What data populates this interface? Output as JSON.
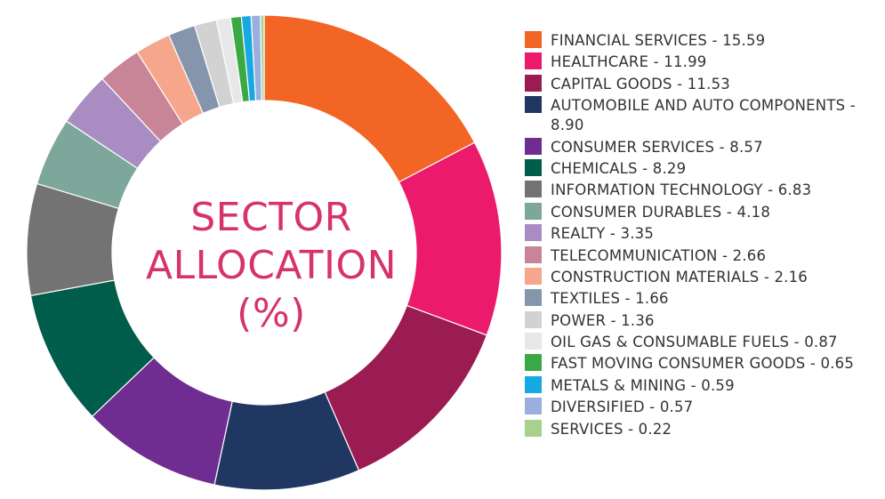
{
  "chart_data": {
    "type": "pie",
    "title_lines": [
      "SECTOR",
      "ALLOCATION",
      "(%)"
    ],
    "slices": [
      {
        "label": "FINANCIAL SERVICES - 15.59",
        "value": 15.59,
        "color": "#f26524"
      },
      {
        "label": "HEALTHCARE - 11.99",
        "value": 11.99,
        "color": "#ec1a6d"
      },
      {
        "label": "CAPITAL GOODS - 11.53",
        "value": 11.53,
        "color": "#9b1c52"
      },
      {
        "label": "AUTOMOBILE AND AUTO COMPONENTS - 8.90",
        "value": 8.9,
        "color": "#1f3761"
      },
      {
        "label": "CONSUMER SERVICES - 8.57",
        "value": 8.57,
        "color": "#6f2c91"
      },
      {
        "label": "CHEMICALS - 8.29",
        "value": 8.29,
        "color": "#005c4b"
      },
      {
        "label": "INFORMATION TECHNOLOGY - 6.83",
        "value": 6.83,
        "color": "#737373"
      },
      {
        "label": "CONSUMER DURABLES - 4.18",
        "value": 4.18,
        "color": "#7da79a"
      },
      {
        "label": "REALTY - 3.35",
        "value": 3.35,
        "color": "#a98dc2"
      },
      {
        "label": "TELECOMMUNICATION - 2.66",
        "value": 2.66,
        "color": "#c88597"
      },
      {
        "label": "CONSTRUCTION MATERIALS - 2.16",
        "value": 2.16,
        "color": "#f6a68a"
      },
      {
        "label": "TEXTILES - 1.66",
        "value": 1.66,
        "color": "#8596ac"
      },
      {
        "label": "POWER - 1.36",
        "value": 1.36,
        "color": "#d2d2d2"
      },
      {
        "label": "OIL GAS & CONSUMABLE FUELS - 0.87",
        "value": 0.87,
        "color": "#e8e8e8"
      },
      {
        "label": "FAST MOVING CONSUMER GOODS - 0.65",
        "value": 0.65,
        "color": "#3aa845"
      },
      {
        "label": "METALS & MINING - 0.59",
        "value": 0.59,
        "color": "#17a9e1"
      },
      {
        "label": "DIVERSIFIED - 0.57",
        "value": 0.57,
        "color": "#9aafde"
      },
      {
        "label": "SERVICES - 0.22",
        "value": 0.22,
        "color": "#a9d18e"
      }
    ],
    "legend_position": "right"
  }
}
